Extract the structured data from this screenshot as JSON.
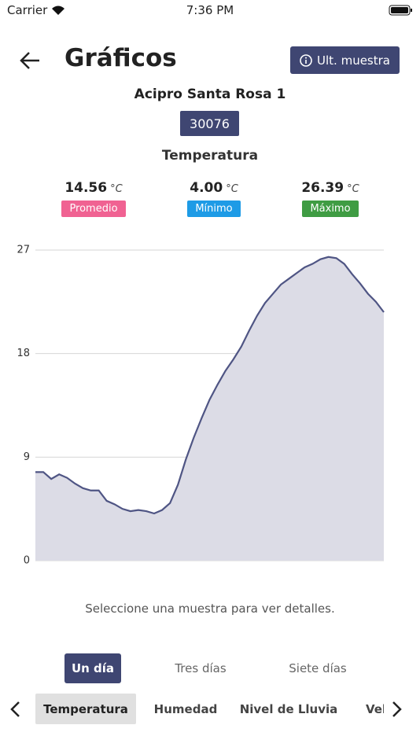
{
  "status_bar": {
    "carrier": "Carrier",
    "time": "7:36 PM"
  },
  "header": {
    "title": "Gráficos",
    "button": "Ult. muestra"
  },
  "station": {
    "name": "Acipro Santa Rosa 1",
    "id": "30076"
  },
  "variable": "Temperatura",
  "stats": [
    {
      "value": "14.56",
      "unit": "°C",
      "label": "Promedio",
      "color": "#f06292"
    },
    {
      "value": "4.00",
      "unit": "°C",
      "label": "Mínimo",
      "color": "#1e9be6"
    },
    {
      "value": "26.39",
      "unit": "°C",
      "label": "Máximo",
      "color": "#3f9c43"
    }
  ],
  "chart_data": {
    "type": "area",
    "color": "#4f5584",
    "fill": "#dcdce6",
    "values": [
      7.7,
      7.7,
      7.1,
      7.5,
      7.2,
      6.7,
      6.3,
      6.1,
      6.1,
      5.2,
      4.9,
      4.5,
      4.3,
      4.4,
      4.3,
      4.1,
      4.4,
      5.0,
      6.6,
      8.8,
      10.7,
      12.4,
      14.0,
      15.3,
      16.5,
      17.5,
      18.6,
      20.0,
      21.3,
      22.4,
      23.2,
      24.0,
      24.5,
      25.0,
      25.5,
      25.8,
      26.2,
      26.4,
      26.3,
      25.8,
      24.9,
      24.1,
      23.2,
      22.5,
      21.6
    ],
    "ylim": [
      0,
      27
    ],
    "yticks": [
      0,
      9,
      18,
      27
    ],
    "grid": true
  },
  "hint": "Seleccione una muestra para ver detalles.",
  "ranges": [
    "Un día",
    "Tres días",
    "Siete días"
  ],
  "variables": [
    "Temperatura",
    "Humedad",
    "Nivel de Lluvia",
    "Vel"
  ]
}
